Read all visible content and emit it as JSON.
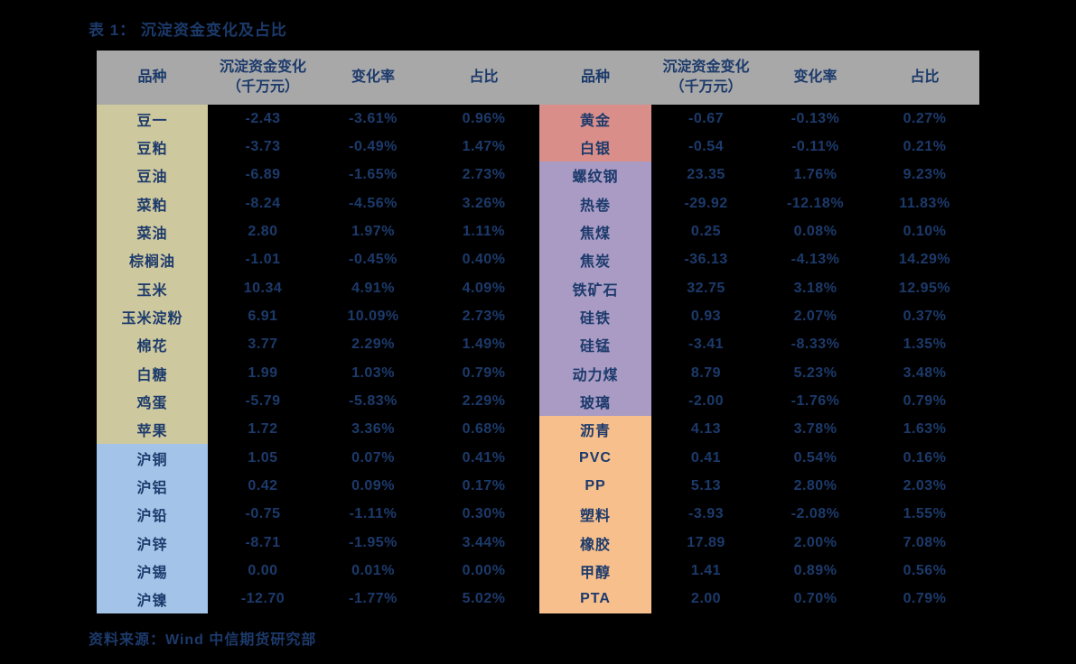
{
  "title": "表 1：  沉淀资金变化及占比",
  "source": "资料来源：Wind  中信期货研究部",
  "colors": {
    "background": "#000000",
    "text": "#1c3a6b",
    "header_bg": "#a8a8a8",
    "group_grains_oilseeds": "#cec89e",
    "group_shanghai_metals": "#a3c4e8",
    "group_precious_metals": "#d98e89",
    "group_ferrous_coal": "#a99bc4",
    "group_energy_chemicals": "#f6bf8c"
  },
  "table": {
    "headers": [
      "品种",
      "沉淀资金变化（千万元）",
      "变化率",
      "占比"
    ],
    "left_rows": [
      {
        "label": "豆一",
        "change": "-2.43",
        "rate": "-3.61%",
        "share": "0.96%",
        "group": "group_grains_oilseeds"
      },
      {
        "label": "豆粕",
        "change": "-3.73",
        "rate": "-0.49%",
        "share": "1.47%",
        "group": "group_grains_oilseeds"
      },
      {
        "label": "豆油",
        "change": "-6.89",
        "rate": "-1.65%",
        "share": "2.73%",
        "group": "group_grains_oilseeds"
      },
      {
        "label": "菜粕",
        "change": "-8.24",
        "rate": "-4.56%",
        "share": "3.26%",
        "group": "group_grains_oilseeds"
      },
      {
        "label": "菜油",
        "change": "2.80",
        "rate": "1.97%",
        "share": "1.11%",
        "group": "group_grains_oilseeds"
      },
      {
        "label": "棕榈油",
        "change": "-1.01",
        "rate": "-0.45%",
        "share": "0.40%",
        "group": "group_grains_oilseeds"
      },
      {
        "label": "玉米",
        "change": "10.34",
        "rate": "4.91%",
        "share": "4.09%",
        "group": "group_grains_oilseeds"
      },
      {
        "label": "玉米淀粉",
        "change": "6.91",
        "rate": "10.09%",
        "share": "2.73%",
        "group": "group_grains_oilseeds"
      },
      {
        "label": "棉花",
        "change": "3.77",
        "rate": "2.29%",
        "share": "1.49%",
        "group": "group_grains_oilseeds"
      },
      {
        "label": "白糖",
        "change": "1.99",
        "rate": "1.03%",
        "share": "0.79%",
        "group": "group_grains_oilseeds"
      },
      {
        "label": "鸡蛋",
        "change": "-5.79",
        "rate": "-5.83%",
        "share": "2.29%",
        "group": "group_grains_oilseeds"
      },
      {
        "label": "苹果",
        "change": "1.72",
        "rate": "3.36%",
        "share": "0.68%",
        "group": "group_grains_oilseeds"
      },
      {
        "label": "沪铜",
        "change": "1.05",
        "rate": "0.07%",
        "share": "0.41%",
        "group": "group_shanghai_metals"
      },
      {
        "label": "沪铝",
        "change": "0.42",
        "rate": "0.09%",
        "share": "0.17%",
        "group": "group_shanghai_metals"
      },
      {
        "label": "沪铅",
        "change": "-0.75",
        "rate": "-1.11%",
        "share": "0.30%",
        "group": "group_shanghai_metals"
      },
      {
        "label": "沪锌",
        "change": "-8.71",
        "rate": "-1.95%",
        "share": "3.44%",
        "group": "group_shanghai_metals"
      },
      {
        "label": "沪锡",
        "change": "0.00",
        "rate": "0.01%",
        "share": "0.00%",
        "group": "group_shanghai_metals"
      },
      {
        "label": "沪镍",
        "change": "-12.70",
        "rate": "-1.77%",
        "share": "5.02%",
        "group": "group_shanghai_metals"
      }
    ],
    "right_rows": [
      {
        "label": "黄金",
        "change": "-0.67",
        "rate": "-0.13%",
        "share": "0.27%",
        "group": "group_precious_metals"
      },
      {
        "label": "白银",
        "change": "-0.54",
        "rate": "-0.11%",
        "share": "0.21%",
        "group": "group_precious_metals"
      },
      {
        "label": "螺纹钢",
        "change": "23.35",
        "rate": "1.76%",
        "share": "9.23%",
        "group": "group_ferrous_coal"
      },
      {
        "label": "热卷",
        "change": "-29.92",
        "rate": "-12.18%",
        "share": "11.83%",
        "group": "group_ferrous_coal"
      },
      {
        "label": "焦煤",
        "change": "0.25",
        "rate": "0.08%",
        "share": "0.10%",
        "group": "group_ferrous_coal"
      },
      {
        "label": "焦炭",
        "change": "-36.13",
        "rate": "-4.13%",
        "share": "14.29%",
        "group": "group_ferrous_coal"
      },
      {
        "label": "铁矿石",
        "change": "32.75",
        "rate": "3.18%",
        "share": "12.95%",
        "group": "group_ferrous_coal"
      },
      {
        "label": "硅铁",
        "change": "0.93",
        "rate": "2.07%",
        "share": "0.37%",
        "group": "group_ferrous_coal"
      },
      {
        "label": "硅锰",
        "change": "-3.41",
        "rate": "-8.33%",
        "share": "1.35%",
        "group": "group_ferrous_coal"
      },
      {
        "label": "动力煤",
        "change": "8.79",
        "rate": "5.23%",
        "share": "3.48%",
        "group": "group_ferrous_coal"
      },
      {
        "label": "玻璃",
        "change": "-2.00",
        "rate": "-1.76%",
        "share": "0.79%",
        "group": "group_ferrous_coal"
      },
      {
        "label": "沥青",
        "change": "4.13",
        "rate": "3.78%",
        "share": "1.63%",
        "group": "group_energy_chemicals"
      },
      {
        "label": "PVC",
        "change": "0.41",
        "rate": "0.54%",
        "share": "0.16%",
        "group": "group_energy_chemicals"
      },
      {
        "label": "PP",
        "change": "5.13",
        "rate": "2.80%",
        "share": "2.03%",
        "group": "group_energy_chemicals"
      },
      {
        "label": "塑料",
        "change": "-3.93",
        "rate": "-2.08%",
        "share": "1.55%",
        "group": "group_energy_chemicals"
      },
      {
        "label": "橡胶",
        "change": "17.89",
        "rate": "2.00%",
        "share": "7.08%",
        "group": "group_energy_chemicals"
      },
      {
        "label": "甲醇",
        "change": "1.41",
        "rate": "0.89%",
        "share": "0.56%",
        "group": "group_energy_chemicals"
      },
      {
        "label": "PTA",
        "change": "2.00",
        "rate": "0.70%",
        "share": "0.79%",
        "group": "group_energy_chemicals"
      }
    ]
  }
}
